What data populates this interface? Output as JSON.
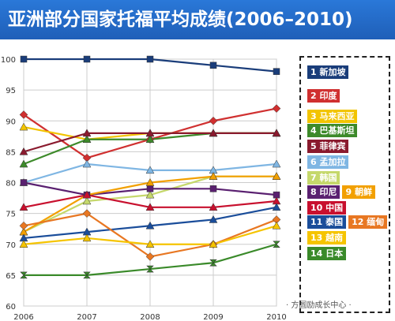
{
  "title": "亚洲部分国家托福平均成绩(2006–2010)",
  "watermark": "· 方圆励成长中心 ·",
  "chart_data": {
    "type": "line",
    "x": [
      "2006",
      "2007",
      "2008",
      "2009",
      "2010"
    ],
    "yticks": [
      60,
      65,
      70,
      75,
      80,
      85,
      90,
      95,
      100
    ],
    "ylim": [
      60,
      100
    ],
    "grid": true,
    "legend_position": "right",
    "series": [
      {
        "name": "新加坡",
        "label": "1 新加坡",
        "color": "#1a3d7a",
        "marker": "square",
        "values": [
          100,
          100,
          100,
          99,
          98
        ]
      },
      {
        "name": "印度",
        "label": "2 印度",
        "color": "#d03030",
        "marker": "diamond",
        "values": [
          91,
          84,
          87,
          90,
          92
        ]
      },
      {
        "name": "马来西亚",
        "label": "3 马来西亚",
        "color": "#f2c400",
        "marker": "triangle",
        "values": [
          89,
          87,
          88,
          88,
          88
        ]
      },
      {
        "name": "巴基斯坦",
        "label": "4 巴基斯坦",
        "color": "#3d8a2a",
        "marker": "triangle",
        "values": [
          83,
          87,
          87,
          88,
          88
        ]
      },
      {
        "name": "菲律宾",
        "label": "5 菲律宾",
        "color": "#8a1a2e",
        "marker": "triangle",
        "values": [
          85,
          88,
          88,
          88,
          88
        ]
      },
      {
        "name": "孟加拉",
        "label": "6 孟加拉",
        "color": "#7fb6e3",
        "marker": "triangle",
        "values": [
          80,
          83,
          82,
          82,
          83
        ]
      },
      {
        "name": "韩国",
        "label": "7 韩国",
        "color": "#c5d86b",
        "marker": "triangle",
        "values": [
          72,
          77,
          78,
          81,
          81
        ]
      },
      {
        "name": "印尼",
        "label": "8 印尼",
        "color": "#5a2070",
        "marker": "square",
        "values": [
          80,
          78,
          79,
          79,
          78
        ]
      },
      {
        "name": "朝鲜",
        "label": "9 朝鲜",
        "color": "#f2a000",
        "marker": "triangle",
        "values": [
          72,
          78,
          80,
          81,
          81
        ]
      },
      {
        "name": "中国",
        "label": "10 中国",
        "color": "#c8102e",
        "marker": "triangle",
        "values": [
          76,
          78,
          76,
          76,
          77
        ]
      },
      {
        "name": "泰国",
        "label": "11 泰国",
        "color": "#1a4d9a",
        "marker": "triangle",
        "values": [
          71,
          72,
          73,
          74,
          76
        ]
      },
      {
        "name": "缅甸",
        "label": "12 缅甸",
        "color": "#e87722",
        "marker": "diamond",
        "values": [
          73,
          75,
          68,
          70,
          74
        ]
      },
      {
        "name": "越南",
        "label": "13 越南",
        "color": "#f5c400",
        "marker": "triangle",
        "values": [
          70,
          71,
          70,
          70,
          73
        ]
      },
      {
        "name": "日本",
        "label": "14 日本",
        "color": "#3a8a2a",
        "marker": "x",
        "values": [
          65,
          65,
          66,
          67,
          70
        ]
      }
    ],
    "legend_rows": [
      [
        0
      ],
      [
        1
      ],
      [
        2
      ],
      [
        3
      ],
      [
        4
      ],
      [
        5
      ],
      [
        6
      ],
      [
        7,
        8
      ],
      [
        9
      ],
      [
        10,
        11
      ],
      [
        12
      ],
      [
        13
      ]
    ]
  }
}
